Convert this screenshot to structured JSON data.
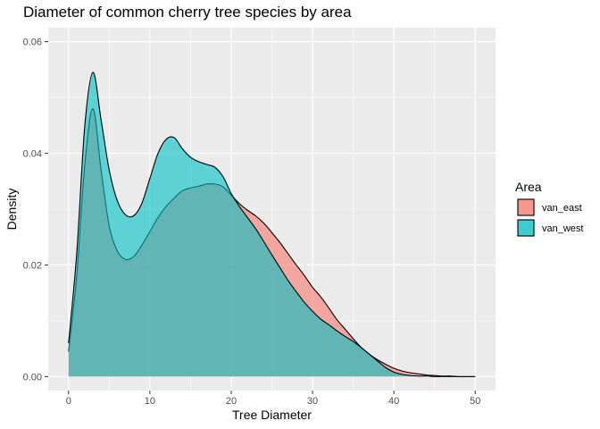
{
  "chart_data": {
    "type": "area",
    "title": "Diameter of common cherry tree species by area",
    "xlabel": "Tree Diameter",
    "ylabel": "Density",
    "xlim": [
      -2.5,
      52.5
    ],
    "ylim": [
      -0.0025,
      0.0625
    ],
    "x_ticks": [
      0,
      10,
      20,
      30,
      40,
      50
    ],
    "y_ticks": [
      0.0,
      0.02,
      0.04,
      0.06
    ],
    "y_tick_labels": [
      "0.00",
      "0.02",
      "0.04",
      "0.06"
    ],
    "grid": true,
    "legend": {
      "title": "Area",
      "position": "right"
    },
    "series": [
      {
        "name": "van_east",
        "color": "#F8766D",
        "x": [
          0,
          1,
          2,
          3,
          4,
          5,
          6,
          7,
          8,
          9,
          10,
          11,
          12,
          13,
          14,
          15,
          16,
          17,
          18,
          19,
          20,
          21,
          22,
          23,
          24,
          25,
          26,
          27,
          28,
          29,
          30,
          31,
          32,
          33,
          34,
          35,
          36,
          37,
          38,
          39,
          40,
          41,
          42,
          43,
          44,
          45,
          46,
          47,
          48,
          49,
          50
        ],
        "values": [
          0.0045,
          0.018,
          0.038,
          0.048,
          0.037,
          0.027,
          0.0225,
          0.021,
          0.0215,
          0.0235,
          0.026,
          0.0285,
          0.0305,
          0.032,
          0.0333,
          0.0338,
          0.0341,
          0.0345,
          0.0345,
          0.034,
          0.0325,
          0.031,
          0.0298,
          0.0288,
          0.0275,
          0.0258,
          0.024,
          0.022,
          0.02,
          0.0181,
          0.016,
          0.0143,
          0.0123,
          0.0102,
          0.0085,
          0.0068,
          0.0052,
          0.004,
          0.003,
          0.0022,
          0.0015,
          0.001,
          0.0007,
          0.0005,
          0.0003,
          0.0002,
          0.0001,
          0.0001,
          0.0,
          0.0,
          0.0
        ]
      },
      {
        "name": "van_west",
        "color": "#00BFC4",
        "x": [
          0,
          1,
          2,
          3,
          4,
          5,
          6,
          7,
          8,
          9,
          10,
          11,
          12,
          13,
          14,
          15,
          16,
          17,
          18,
          19,
          20,
          21,
          22,
          23,
          24,
          25,
          26,
          27,
          28,
          29,
          30,
          31,
          32,
          33,
          34,
          35,
          36,
          37,
          38,
          39,
          40,
          41,
          42,
          43,
          44,
          45,
          46,
          47,
          48,
          49,
          50
        ],
        "values": [
          0.006,
          0.022,
          0.045,
          0.0545,
          0.046,
          0.037,
          0.0315,
          0.029,
          0.0288,
          0.031,
          0.0355,
          0.04,
          0.0425,
          0.0428,
          0.0408,
          0.0393,
          0.0385,
          0.038,
          0.0375,
          0.0358,
          0.0328,
          0.0305,
          0.0285,
          0.0265,
          0.0242,
          0.0218,
          0.0195,
          0.0172,
          0.0152,
          0.0133,
          0.0117,
          0.0103,
          0.0093,
          0.0082,
          0.0072,
          0.0063,
          0.0052,
          0.004,
          0.0028,
          0.0016,
          0.0008,
          0.0004,
          0.0002,
          0.0001,
          0.0001,
          0.0,
          0.0,
          0.0,
          0.0,
          0.0,
          0.0
        ]
      }
    ]
  }
}
